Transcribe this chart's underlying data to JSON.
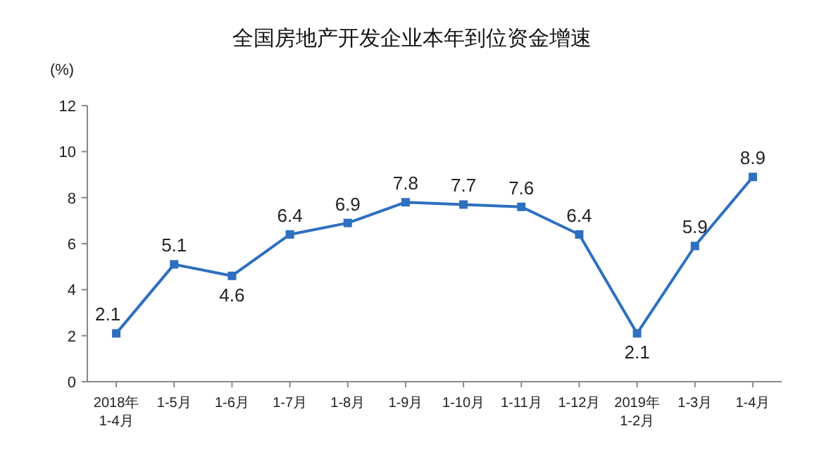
{
  "chart_data": {
    "type": "line",
    "title": "全国房地产开发企业本年到位资金增速",
    "ylabel": "(%)",
    "categories": [
      "2018年\n1-4月",
      "1-5月",
      "1-6月",
      "1-7月",
      "1-8月",
      "1-9月",
      "1-10月",
      "1-11月",
      "1-12月",
      "2019年\n1-2月",
      "1-3月",
      "1-4月"
    ],
    "series": [
      {
        "color": "#2e6fc0",
        "values": [
          2.1,
          5.1,
          4.6,
          6.4,
          6.9,
          7.8,
          7.7,
          7.6,
          6.4,
          2.1,
          5.9,
          8.9
        ]
      }
    ],
    "ylim": [
      0,
      12
    ],
    "yticks": [
      0,
      2,
      4,
      6,
      8,
      10,
      12
    ],
    "marker": "square",
    "data_labels": true
  }
}
